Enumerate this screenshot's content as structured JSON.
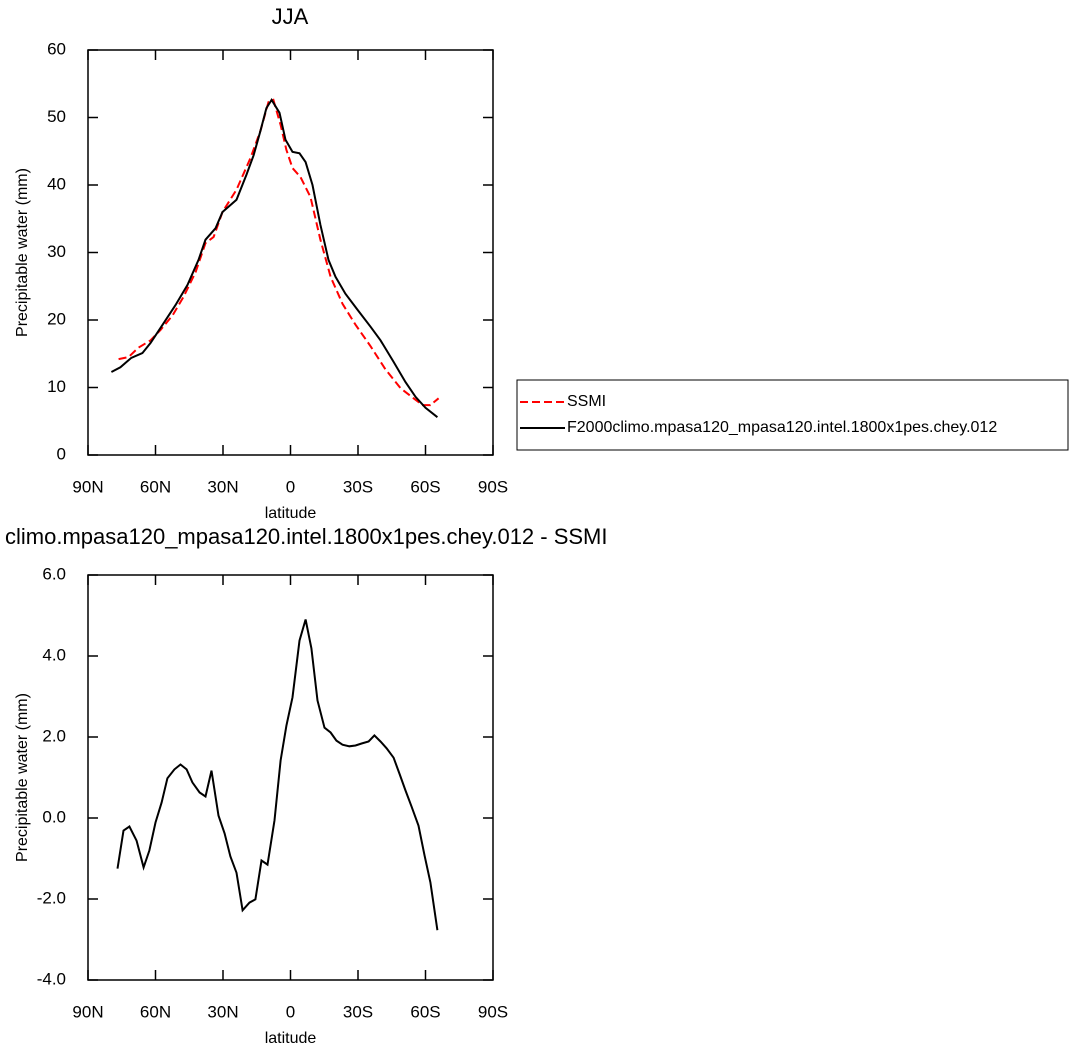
{
  "chart_data": [
    {
      "type": "line",
      "title": "JJA",
      "xlabel": "latitude",
      "ylabel": "Precipitable water (mm)",
      "xlim": [
        90,
        -90
      ],
      "xticks": [
        {
          "value": 90,
          "label": "90N"
        },
        {
          "value": 60,
          "label": "60N"
        },
        {
          "value": 30,
          "label": "30N"
        },
        0,
        {
          "value": -30,
          "label": "30S"
        },
        {
          "value": -60,
          "label": "60S"
        },
        {
          "value": -90,
          "label": "90S"
        }
      ],
      "ylim": [
        0,
        60
      ],
      "yticks": [
        0,
        10,
        20,
        30,
        40,
        50,
        60
      ],
      "legend": "right",
      "series": [
        {
          "name": "SSMI",
          "color": "#ff0000",
          "linestyle": "dashed",
          "x": [
            76.4,
            72.0,
            67.6,
            62.2,
            57.8,
            52.4,
            47.6,
            42.2,
            37.8,
            34.2,
            30.2,
            24.0,
            17.8,
            13.3,
            9.8,
            7.6,
            4.4,
            1.8,
            -0.9,
            -4.4,
            -8.9,
            -13.3,
            -17.8,
            -23.1,
            -28.9,
            -35.6,
            -42.2,
            -48.9,
            -54.7,
            -58.7,
            -62.2,
            -65.8
          ],
          "values": [
            14.2,
            14.5,
            15.9,
            17.0,
            18.5,
            20.7,
            23.4,
            27.1,
            31.4,
            32.3,
            36.0,
            39.3,
            44.0,
            48.1,
            52.3,
            52.6,
            48.9,
            45.2,
            42.5,
            41.2,
            38.2,
            31.9,
            26.4,
            22.4,
            19.3,
            16.1,
            12.7,
            9.9,
            8.4,
            7.4,
            7.4,
            8.4
          ]
        },
        {
          "name": "F2000climo.mpasa120_mpasa120.intel.1800x1pes.chey.012",
          "color": "#000000",
          "linestyle": "solid",
          "x": [
            79.6,
            75.6,
            70.7,
            65.8,
            62.2,
            57.8,
            51.1,
            45.8,
            40.9,
            37.8,
            33.3,
            30.2,
            24.0,
            19.6,
            16.4,
            13.3,
            10.7,
            8.4,
            4.9,
            2.2,
            -0.9,
            -4.0,
            -6.7,
            -9.8,
            -13.3,
            -16.9,
            -20.0,
            -24.4,
            -29.8,
            -35.6,
            -40.0,
            -45.8,
            -51.1,
            -55.6,
            -60.0,
            -65.3
          ],
          "values": [
            12.3,
            13.0,
            14.4,
            15.1,
            16.6,
            18.8,
            22.2,
            25.2,
            28.9,
            31.9,
            33.6,
            36.0,
            37.8,
            41.5,
            44.4,
            48.1,
            51.4,
            52.6,
            50.7,
            46.7,
            44.9,
            44.7,
            43.4,
            40.0,
            34.1,
            28.9,
            26.4,
            23.9,
            21.5,
            19.0,
            17.0,
            13.8,
            10.8,
            8.6,
            7.0,
            5.6
          ]
        }
      ]
    },
    {
      "type": "line",
      "title": "climo.mpasa120_mpasa120.intel.1800x1pes.chey.012 - SSMI",
      "xlabel": "latitude",
      "ylabel": "Precipitable water (mm)",
      "xlim": [
        90,
        -90
      ],
      "xticks": [
        {
          "value": 90,
          "label": "90N"
        },
        {
          "value": 60,
          "label": "60N"
        },
        {
          "value": 30,
          "label": "30N"
        },
        0,
        {
          "value": -30,
          "label": "30S"
        },
        {
          "value": -60,
          "label": "60S"
        },
        {
          "value": -90,
          "label": "90S"
        }
      ],
      "ylim": [
        -4,
        6
      ],
      "yticks": [
        {
          "value": -4,
          "label": "-4.0"
        },
        {
          "value": -2,
          "label": "-2.0"
        },
        {
          "value": 0,
          "label": "0.0"
        },
        {
          "value": 2,
          "label": "2.0"
        },
        {
          "value": 4,
          "label": "4.0"
        },
        {
          "value": 6,
          "label": "6.0"
        }
      ],
      "series": [
        {
          "color": "#000000",
          "linestyle": "solid",
          "x": [
            76.9,
            74.2,
            71.6,
            68.4,
            65.3,
            62.7,
            60.0,
            57.3,
            54.7,
            51.6,
            48.9,
            46.2,
            43.6,
            40.4,
            37.8,
            35.1,
            32.0,
            29.3,
            26.7,
            24.0,
            21.3,
            18.2,
            15.6,
            12.9,
            10.2,
            7.1,
            4.4,
            1.8,
            -0.9,
            -4.0,
            -6.7,
            -9.3,
            -12.0,
            -15.1,
            -17.8,
            -20.4,
            -23.1,
            -26.2,
            -28.9,
            -31.6,
            -34.7,
            -37.3,
            -40.0,
            -42.7,
            -45.8,
            -48.4,
            -51.1,
            -53.8,
            -56.9,
            -59.6,
            -62.2,
            -65.3
          ],
          "values": [
            -1.25,
            -0.31,
            -0.21,
            -0.56,
            -1.22,
            -0.8,
            -0.11,
            0.38,
            0.98,
            1.2,
            1.32,
            1.2,
            0.88,
            0.63,
            0.53,
            1.17,
            0.06,
            -0.38,
            -0.95,
            -1.35,
            -2.28,
            -2.09,
            -2.01,
            -1.05,
            -1.15,
            -0.06,
            1.42,
            2.28,
            2.98,
            4.38,
            4.9,
            4.19,
            2.9,
            2.23,
            2.11,
            1.91,
            1.81,
            1.77,
            1.79,
            1.84,
            1.89,
            2.04,
            1.89,
            1.72,
            1.49,
            1.1,
            0.68,
            0.28,
            -0.19,
            -0.93,
            -1.59,
            -2.77
          ]
        }
      ]
    }
  ]
}
